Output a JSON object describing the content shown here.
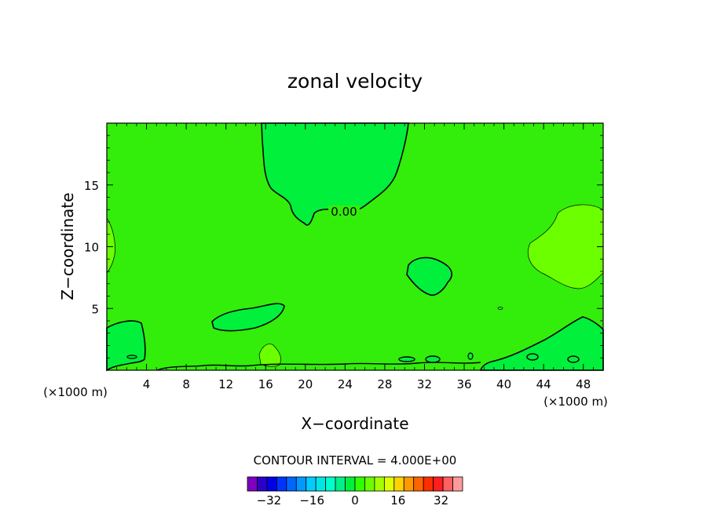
{
  "chart_data": {
    "type": "heatmap",
    "title": "zonal velocity",
    "xlabel": "X−coordinate",
    "ylabel": "Z−coordinate",
    "x_scale_left": "(×1000 m)",
    "x_scale_right": "(×1000 m)",
    "xlim": [
      0,
      50
    ],
    "ylim": [
      0,
      20
    ],
    "x_ticks": [
      4,
      8,
      12,
      16,
      20,
      24,
      28,
      32,
      36,
      40,
      44,
      48
    ],
    "y_ticks": [
      5,
      10,
      15
    ],
    "contour_label": "0.00",
    "contour_interval_text": "CONTOUR INTERVAL = 4.000E+00",
    "colorbar": {
      "tick_labels": [
        "−32",
        "−16",
        "0",
        "16",
        "32"
      ],
      "tick_values": [
        -32,
        -16,
        0,
        16,
        32
      ],
      "min": -40,
      "max": 40,
      "interval": 4,
      "colors": [
        "#7f00bf",
        "#2a00c8",
        "#0000e6",
        "#0033ff",
        "#0066ff",
        "#0099ff",
        "#00ccff",
        "#00e6e6",
        "#00ffcc",
        "#00f08a",
        "#00f03c",
        "#32ff00",
        "#6bff00",
        "#a6ff00",
        "#e0ff00",
        "#ffd200",
        "#ff9900",
        "#ff6400",
        "#ff2e00",
        "#ff1e1e",
        "#ff6060",
        "#ff9a9a"
      ]
    },
    "background_value_range": [
      0,
      4
    ],
    "regions": [
      {
        "label": "upper center",
        "value_range": [
          -4,
          0
        ]
      },
      {
        "label": "near (32, 8)",
        "value_range": [
          -4,
          0
        ]
      },
      {
        "label": "near (13, 4.5)",
        "value_range": [
          -4,
          0
        ]
      },
      {
        "label": "near (46, 11)",
        "value_range": [
          4,
          8
        ]
      },
      {
        "label": "near bottom-left corner",
        "value_range": [
          -4,
          0
        ]
      },
      {
        "label": "near bottom-right corner",
        "value_range": [
          -4,
          0
        ]
      }
    ]
  }
}
